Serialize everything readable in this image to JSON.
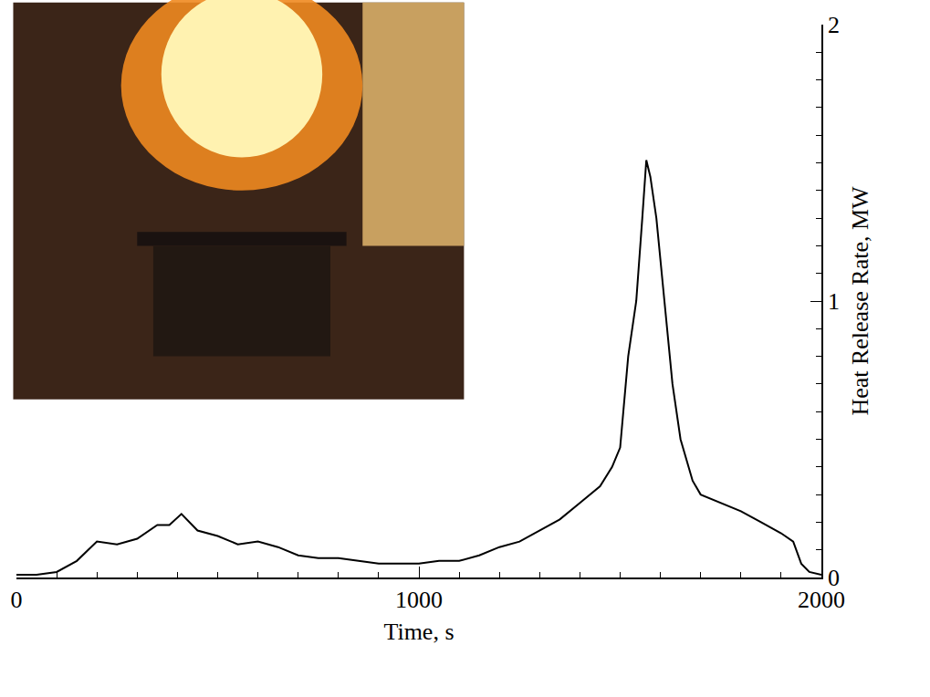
{
  "chart_data": {
    "type": "line",
    "x_label": "Time, s",
    "y_label": "Heat Release Rate, MW",
    "x": [
      0,
      50,
      100,
      150,
      200,
      250,
      300,
      350,
      380,
      410,
      450,
      500,
      550,
      600,
      650,
      700,
      750,
      800,
      850,
      900,
      950,
      1000,
      1050,
      1100,
      1150,
      1200,
      1250,
      1300,
      1350,
      1400,
      1450,
      1480,
      1500,
      1520,
      1540,
      1555,
      1565,
      1575,
      1590,
      1610,
      1630,
      1650,
      1680,
      1700,
      1750,
      1800,
      1850,
      1900,
      1930,
      1950,
      1970,
      2000
    ],
    "values": [
      0.01,
      0.01,
      0.02,
      0.06,
      0.13,
      0.12,
      0.14,
      0.19,
      0.19,
      0.23,
      0.17,
      0.15,
      0.12,
      0.13,
      0.11,
      0.08,
      0.07,
      0.07,
      0.06,
      0.05,
      0.05,
      0.05,
      0.06,
      0.06,
      0.08,
      0.11,
      0.13,
      0.17,
      0.21,
      0.27,
      0.33,
      0.4,
      0.47,
      0.8,
      1.0,
      1.3,
      1.51,
      1.45,
      1.3,
      1.0,
      0.7,
      0.5,
      0.35,
      0.3,
      0.27,
      0.24,
      0.2,
      0.16,
      0.13,
      0.05,
      0.02,
      0.01
    ],
    "color": "#000000",
    "xlim": [
      0,
      2000
    ],
    "ylim": [
      0,
      2
    ],
    "xticks": [
      0,
      1000,
      2000
    ],
    "yticks": [
      0,
      1,
      2
    ],
    "grid": false
  }
}
